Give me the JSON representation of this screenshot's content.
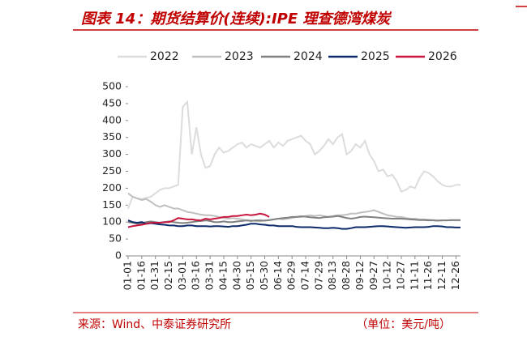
{
  "chart_data": {
    "type": "line",
    "title": "图表 14：期货结算价(连续):IPE 理查德湾煤炭",
    "source": "来源：Wind、中泰证券研究所",
    "unit": "（单位：美元/吨）",
    "categories": [
      "01-01",
      null,
      null,
      "01-16",
      null,
      null,
      "01-31",
      null,
      null,
      "02-15",
      null,
      null,
      "03-01",
      null,
      null,
      "03-16",
      null,
      null,
      "03-31",
      null,
      null,
      "04-15",
      null,
      null,
      "04-30",
      null,
      null,
      "05-15",
      null,
      null,
      "05-30",
      null,
      null,
      "06-14",
      null,
      null,
      "06-29",
      null,
      null,
      "07-14",
      null,
      null,
      "07-29",
      null,
      null,
      "08-13",
      null,
      null,
      "08-28",
      null,
      null,
      "09-12",
      null,
      null,
      "09-27",
      null,
      null,
      "10-12",
      null,
      null,
      "10-27",
      null,
      null,
      "11-11",
      null,
      null,
      "11-26",
      null,
      null,
      "12-11",
      null,
      null,
      "12-26",
      null
    ],
    "series": [
      {
        "name": "2022",
        "color": "#dcdcdc",
        "values": [
          140,
          175,
          170,
          168,
          172,
          175,
          185,
          195,
          200,
          200,
          205,
          210,
          440,
          455,
          300,
          380,
          300,
          260,
          265,
          300,
          320,
          305,
          310,
          320,
          330,
          335,
          320,
          330,
          325,
          320,
          330,
          340,
          320,
          335,
          325,
          340,
          345,
          350,
          355,
          340,
          330,
          300,
          310,
          325,
          345,
          330,
          350,
          360,
          300,
          310,
          330,
          320,
          340,
          300,
          280,
          250,
          255,
          235,
          240,
          220,
          190,
          195,
          205,
          200,
          230,
          250,
          245,
          235,
          220,
          210,
          205,
          205,
          210,
          210
        ]
      },
      {
        "name": "2023",
        "color": "#bfbfbf",
        "values": [
          185,
          175,
          170,
          165,
          168,
          160,
          150,
          145,
          150,
          145,
          140,
          140,
          135,
          130,
          128,
          125,
          122,
          120,
          120,
          118,
          115,
          112,
          110,
          112,
          110,
          108,
          105,
          105,
          103,
          102,
          105,
          105,
          108,
          110,
          108,
          110,
          112,
          115,
          115,
          118,
          120,
          118,
          120,
          118,
          115,
          118,
          120,
          120,
          122,
          125,
          125,
          128,
          130,
          132,
          135,
          130,
          125,
          120,
          118,
          115,
          115,
          112,
          110,
          110,
          108,
          108,
          107,
          106,
          105,
          105,
          105,
          105,
          105,
          105
        ]
      },
      {
        "name": "2024",
        "color": "#808080",
        "values": [
          100,
          98,
          95,
          97,
          100,
          102,
          100,
          98,
          100,
          102,
          100,
          98,
          97,
          98,
          100,
          102,
          103,
          105,
          103,
          100,
          100,
          102,
          100,
          100,
          102,
          103,
          105,
          103,
          105,
          105,
          104,
          106,
          108,
          110,
          112,
          113,
          115,
          115,
          117,
          116,
          114,
          113,
          112,
          114,
          115,
          116,
          118,
          115,
          112,
          110,
          112,
          115,
          116,
          115,
          114,
          113,
          112,
          111,
          110,
          110,
          110,
          109,
          108,
          107,
          106,
          106,
          105,
          105,
          104,
          105,
          105,
          106,
          106,
          106
        ]
      },
      {
        "name": "2025",
        "color": "#0c2a6b",
        "values": [
          105,
          100,
          98,
          100,
          95,
          97,
          95,
          93,
          92,
          90,
          90,
          88,
          88,
          90,
          90,
          88,
          88,
          88,
          87,
          88,
          88,
          87,
          86,
          88,
          88,
          90,
          92,
          95,
          95,
          93,
          92,
          90,
          90,
          88,
          88,
          88,
          88,
          86,
          85,
          85,
          85,
          84,
          83,
          82,
          82,
          83,
          82,
          80,
          80,
          82,
          85,
          85,
          85,
          86,
          87,
          88,
          88,
          87,
          86,
          85,
          84,
          83,
          84,
          85,
          85,
          85,
          86,
          88,
          88,
          87,
          85,
          85,
          84,
          84
        ]
      },
      {
        "name": "2026",
        "color": "#c8163f",
        "values": [
          85,
          88,
          90,
          92,
          95,
          98,
          98,
          98,
          100,
          100,
          105,
          112,
          110,
          108,
          108,
          106,
          105,
          110,
          108,
          110,
          112,
          115,
          115,
          118,
          118,
          120,
          122,
          120,
          122,
          125,
          122,
          115,
          null,
          null,
          null,
          null,
          null,
          null,
          null,
          null,
          null,
          null,
          null,
          null,
          null,
          null,
          null,
          null,
          null,
          null,
          null,
          null,
          null,
          null,
          null,
          null,
          null,
          null,
          null,
          null,
          null,
          null,
          null,
          null,
          null,
          null,
          null,
          null,
          null,
          null,
          null,
          null,
          null,
          null
        ]
      }
    ],
    "ylim": [
      0,
      500
    ],
    "yticks": [
      0,
      50,
      100,
      150,
      200,
      250,
      300,
      350,
      400,
      450,
      500
    ]
  }
}
